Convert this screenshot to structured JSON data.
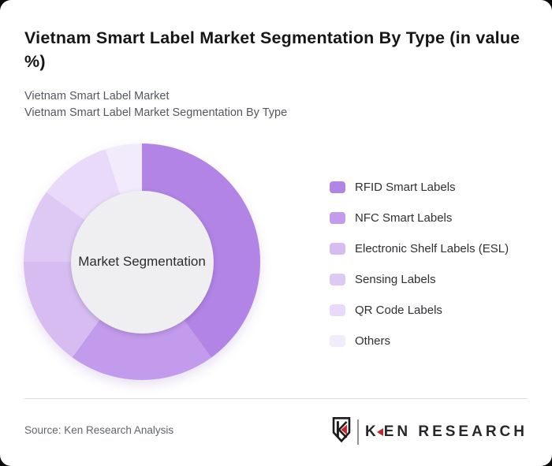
{
  "header": {
    "title": "Vietnam Smart Label Market Segmentation By Type (in value %)",
    "subtitle_line1": "Vietnam Smart Label Market",
    "subtitle_line2": "Vietnam Smart Label Market Segmentation By Type"
  },
  "chart_data": {
    "type": "pie",
    "subtype": "donut",
    "title": "Vietnam Smart Label Market Segmentation By Type (in value %)",
    "center_label": "Market Segmentation",
    "unit": "value %",
    "legend_position": "right",
    "categories": [
      "RFID Smart Labels",
      "NFC Smart Labels",
      "Electronic Shelf Labels (ESL)",
      "Sensing Labels",
      "QR Code Labels",
      "Others"
    ],
    "values": [
      40,
      20,
      15,
      10,
      10,
      5
    ],
    "colors": [
      "#b184e6",
      "#c39bec",
      "#d6bcf1",
      "#ddc9f4",
      "#e8daf8",
      "#f2ebfb"
    ],
    "start_angle_deg": 0,
    "hole_color": "#efeff1"
  },
  "footer": {
    "source": "Source: Ken Research Analysis",
    "logo": {
      "brand_first_letter": "K",
      "brand_rest": "EN RESEARCH",
      "accent_color": "#c0272d"
    }
  }
}
